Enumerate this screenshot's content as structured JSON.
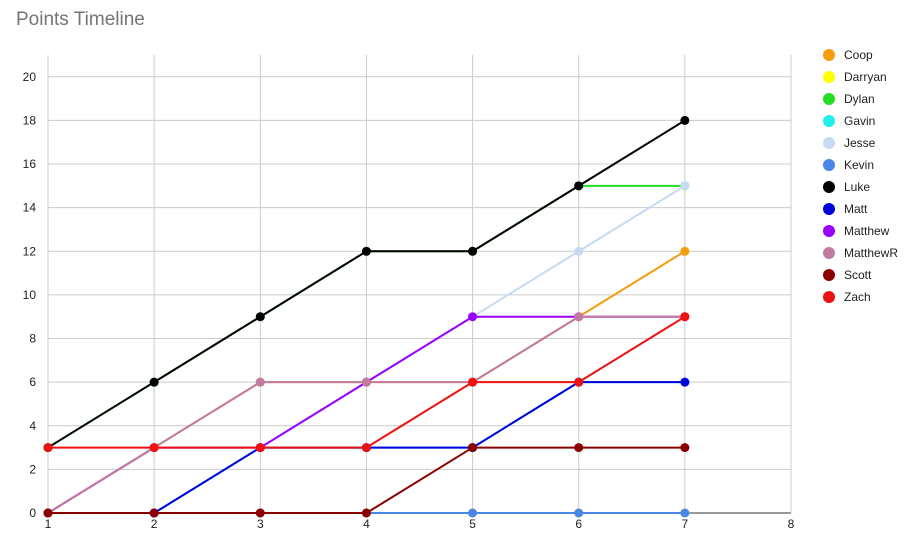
{
  "chart_data": {
    "type": "line",
    "title": "Points Timeline",
    "x": [
      1,
      2,
      3,
      4,
      5,
      6,
      7
    ],
    "xlim": [
      1,
      8
    ],
    "xticks": [
      1,
      2,
      3,
      4,
      5,
      6,
      7,
      8
    ],
    "ylim": [
      0,
      21
    ],
    "yticks": [
      0,
      2,
      4,
      6,
      8,
      10,
      12,
      14,
      16,
      18,
      20
    ],
    "grid": true,
    "legend": "right",
    "series": [
      {
        "name": "Coop",
        "color": "#f59c0f",
        "values": [
          0,
          3,
          6,
          6,
          6,
          9,
          12
        ]
      },
      {
        "name": "Darryan",
        "color": "#ffff00",
        "values": [
          0,
          0,
          0,
          0,
          0,
          0,
          0
        ]
      },
      {
        "name": "Dylan",
        "color": "#22dd22",
        "values": [
          3,
          6,
          9,
          12,
          12,
          15,
          15
        ]
      },
      {
        "name": "Gavin",
        "color": "#22eeee",
        "values": [
          0,
          0,
          3,
          3,
          3,
          6,
          6
        ]
      },
      {
        "name": "Jesse",
        "color": "#c6daf2",
        "values": [
          0,
          3,
          3,
          6,
          9,
          12,
          15
        ]
      },
      {
        "name": "Kevin",
        "color": "#4a86e8",
        "values": [
          0,
          0,
          0,
          0,
          0,
          0,
          0
        ]
      },
      {
        "name": "Luke",
        "color": "#000000",
        "values": [
          3,
          6,
          9,
          12,
          12,
          15,
          18
        ]
      },
      {
        "name": "Matt",
        "color": "#0000dd",
        "values": [
          0,
          0,
          3,
          3,
          3,
          6,
          6
        ]
      },
      {
        "name": "Matthew",
        "color": "#9900ff",
        "values": [
          0,
          3,
          3,
          6,
          9,
          9,
          9
        ]
      },
      {
        "name": "MatthewR",
        "color": "#c27ba0",
        "values": [
          0,
          3,
          6,
          6,
          6,
          9,
          9
        ]
      },
      {
        "name": "Scott",
        "color": "#8b0000",
        "values": [
          0,
          0,
          0,
          0,
          3,
          3,
          3
        ]
      },
      {
        "name": "Zach",
        "color": "#ee1111",
        "values": [
          3,
          3,
          3,
          3,
          6,
          6,
          9
        ]
      }
    ]
  }
}
